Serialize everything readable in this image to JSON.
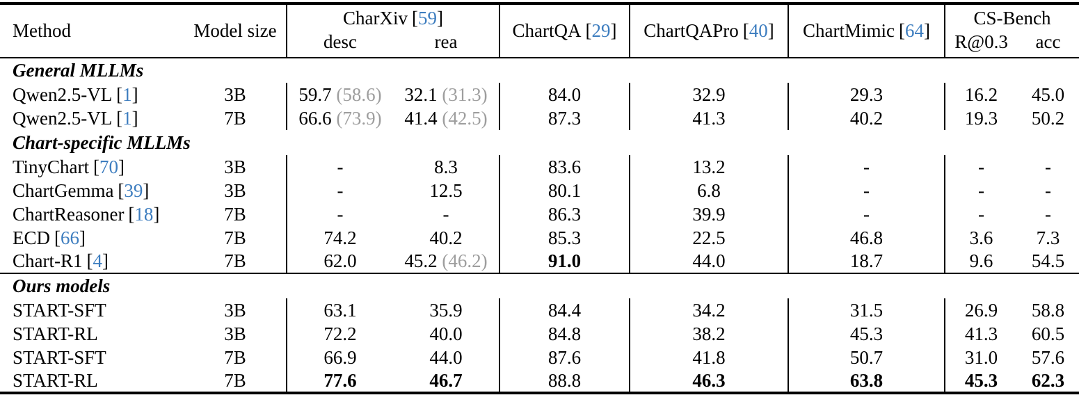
{
  "colors": {
    "text": "#000000",
    "cite_blue": "#3d7dbf",
    "secondary_gray": "#9e9e9e",
    "rule_black": "#000000",
    "background": "#ffffff"
  },
  "punct": {
    "open": "[",
    "close": "]"
  },
  "table": {
    "header": {
      "method_label": "Method",
      "model_size_label": "Model size",
      "charxiv": {
        "name": "CharXiv",
        "cite": "59",
        "sub": [
          "desc",
          "rea"
        ]
      },
      "chartqa": {
        "name": "ChartQA",
        "cite": "29"
      },
      "chartqapro": {
        "name": "ChartQAPro",
        "cite": "40"
      },
      "chartmimic": {
        "name": "ChartMimic",
        "cite": "64"
      },
      "csbench": {
        "name": "CS-Bench",
        "sub": [
          "R@0.3",
          "acc"
        ]
      }
    },
    "sections": [
      {
        "title": "General MLLMs",
        "rows": [
          {
            "method": "Qwen2.5-VL",
            "cite": "1",
            "size": "3B",
            "cells": [
              {
                "v": "59.7",
                "p": "58.6"
              },
              {
                "v": "32.1",
                "p": "31.3"
              },
              {
                "v": "84.0"
              },
              {
                "v": "32.9"
              },
              {
                "v": "29.3"
              },
              {
                "v": "16.2"
              },
              {
                "v": "45.0"
              }
            ]
          },
          {
            "method": "Qwen2.5-VL",
            "cite": "1",
            "size": "7B",
            "cells": [
              {
                "v": "66.6",
                "p": "73.9"
              },
              {
                "v": "41.4",
                "p": "42.5"
              },
              {
                "v": "87.3"
              },
              {
                "v": "41.3"
              },
              {
                "v": "40.2"
              },
              {
                "v": "19.3"
              },
              {
                "v": "50.2"
              }
            ]
          }
        ]
      },
      {
        "title": "Chart-specific MLLMs",
        "rows": [
          {
            "method": "TinyChart",
            "cite": "70",
            "size": "3B",
            "cells": [
              {
                "v": "-"
              },
              {
                "v": "8.3"
              },
              {
                "v": "83.6"
              },
              {
                "v": "13.2"
              },
              {
                "v": "-"
              },
              {
                "v": "-"
              },
              {
                "v": "-"
              }
            ]
          },
          {
            "method": "ChartGemma",
            "cite": "39",
            "size": "3B",
            "cells": [
              {
                "v": "-"
              },
              {
                "v": "12.5"
              },
              {
                "v": "80.1"
              },
              {
                "v": "6.8"
              },
              {
                "v": "-"
              },
              {
                "v": "-"
              },
              {
                "v": "-"
              }
            ]
          },
          {
            "method": "ChartReasoner",
            "cite": "18",
            "size": "7B",
            "cells": [
              {
                "v": "-"
              },
              {
                "v": "-"
              },
              {
                "v": "86.3"
              },
              {
                "v": "39.9"
              },
              {
                "v": "-"
              },
              {
                "v": "-"
              },
              {
                "v": "-"
              }
            ]
          },
          {
            "method": "ECD",
            "cite": "66",
            "size": "7B",
            "cells": [
              {
                "v": "74.2"
              },
              {
                "v": "40.2"
              },
              {
                "v": "85.3"
              },
              {
                "v": "22.5"
              },
              {
                "v": "46.8"
              },
              {
                "v": "3.6"
              },
              {
                "v": "7.3"
              }
            ]
          },
          {
            "method": "Chart-R1",
            "cite": "4",
            "size": "7B",
            "cells": [
              {
                "v": "62.0"
              },
              {
                "v": "45.2",
                "p": "46.2"
              },
              {
                "v": "91.0",
                "b": true
              },
              {
                "v": "44.0"
              },
              {
                "v": "18.7"
              },
              {
                "v": "9.6"
              },
              {
                "v": "54.5"
              }
            ]
          }
        ]
      },
      {
        "title": "Ours models",
        "rows": [
          {
            "method": "START-SFT",
            "size": "3B",
            "cells": [
              {
                "v": "63.1"
              },
              {
                "v": "35.9"
              },
              {
                "v": "84.4"
              },
              {
                "v": "34.2"
              },
              {
                "v": "31.5"
              },
              {
                "v": "26.9"
              },
              {
                "v": "58.8"
              }
            ]
          },
          {
            "method": "START-RL",
            "size": "3B",
            "cells": [
              {
                "v": "72.2"
              },
              {
                "v": "40.0"
              },
              {
                "v": "84.8"
              },
              {
                "v": "38.2"
              },
              {
                "v": "45.3"
              },
              {
                "v": "41.3"
              },
              {
                "v": "60.5"
              }
            ]
          },
          {
            "method": "START-SFT",
            "size": "7B",
            "cells": [
              {
                "v": "66.9"
              },
              {
                "v": "44.0"
              },
              {
                "v": "87.6"
              },
              {
                "v": "41.8"
              },
              {
                "v": "50.7"
              },
              {
                "v": "31.0"
              },
              {
                "v": "57.6"
              }
            ]
          },
          {
            "method": "START-RL",
            "size": "7B",
            "cells": [
              {
                "v": "77.6",
                "b": true
              },
              {
                "v": "46.7",
                "b": true
              },
              {
                "v": "88.8"
              },
              {
                "v": "46.3",
                "b": true
              },
              {
                "v": "63.8",
                "b": true
              },
              {
                "v": "45.3",
                "b": true
              },
              {
                "v": "62.3",
                "b": true
              }
            ]
          }
        ]
      }
    ]
  }
}
